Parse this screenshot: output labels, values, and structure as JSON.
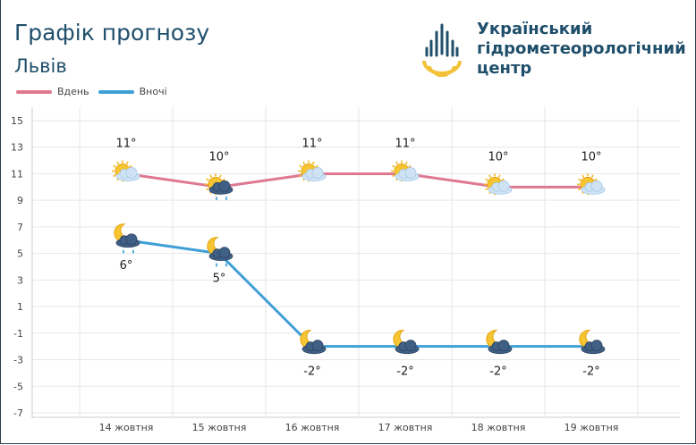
{
  "header": {
    "title": "Графік прогнозу",
    "city": "Львів",
    "org_lines": [
      "Український",
      "гідрометеорологічний",
      "центр"
    ]
  },
  "legend": [
    {
      "label": "Вдень",
      "color": "#e07890"
    },
    {
      "label": "Вночі",
      "color": "#3fa0d8"
    }
  ],
  "chart_data": {
    "type": "line",
    "categories": [
      "14 жовтня",
      "15 жовтня",
      "16 жовтня",
      "17 жовтня",
      "18 жовтня",
      "19 жовтня"
    ],
    "ylim": [
      -7,
      15
    ],
    "yticks": [
      15,
      13,
      11,
      9,
      7,
      5,
      3,
      1,
      -1,
      -3,
      -5,
      -7
    ],
    "grid": true,
    "legend_position": "top-left",
    "series": [
      {
        "name": "Вдень",
        "values": [
          11,
          10,
          11,
          11,
          10,
          10
        ],
        "labels": [
          "11°",
          "10°",
          "11°",
          "11°",
          "10°",
          "10°"
        ],
        "icons": [
          "sun-cloud-icon",
          "sun-rain-icon",
          "sun-cloud-icon",
          "sun-cloud-icon",
          "sun-cloud-icon",
          "sun-cloud-icon"
        ]
      },
      {
        "name": "Вночі",
        "values": [
          6,
          5,
          -2,
          -2,
          -2,
          -2
        ],
        "labels": [
          "6°",
          "5°",
          "-2°",
          "-2°",
          "-2°",
          "-2°"
        ],
        "icons": [
          "moon-rain-icon",
          "moon-rain-icon",
          "moon-cloud-icon",
          "moon-cloud-icon",
          "moon-cloud-icon",
          "moon-cloud-icon"
        ]
      }
    ]
  }
}
